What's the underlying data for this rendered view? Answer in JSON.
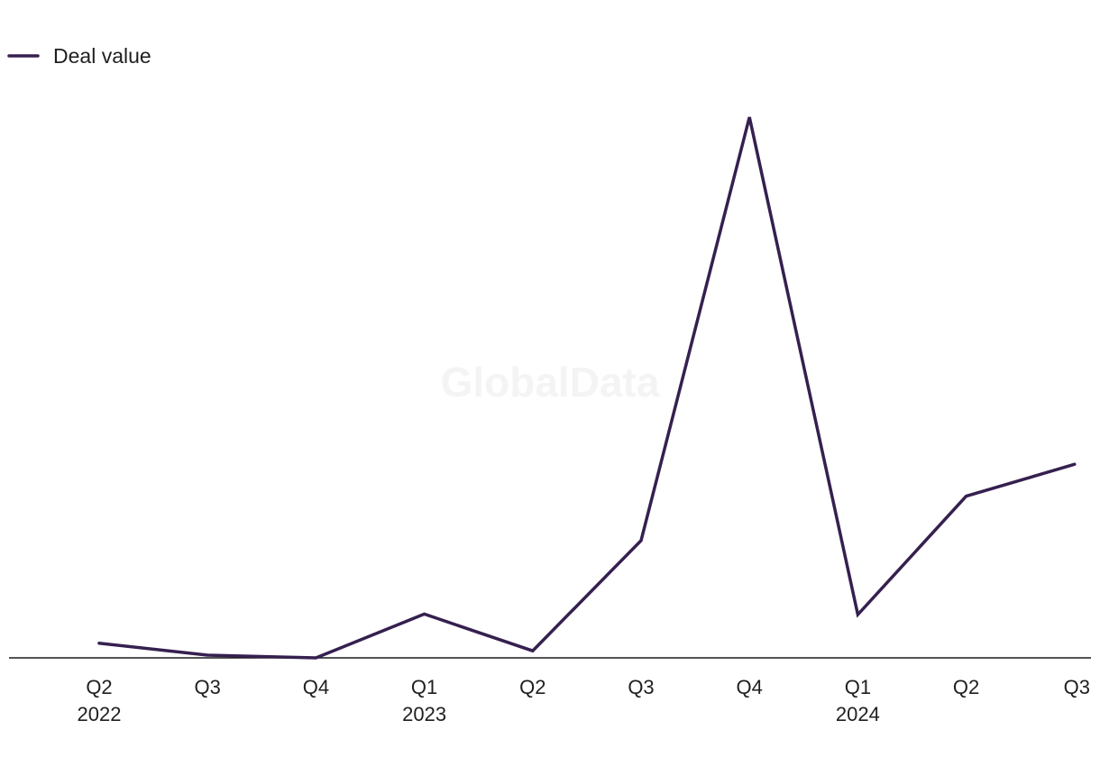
{
  "chart_data": {
    "type": "line",
    "title": "",
    "xlabel": "",
    "ylabel": "",
    "categories": [
      "Q2 2022",
      "Q3 2022",
      "Q4 2022",
      "Q1 2023",
      "Q2 2023",
      "Q3 2023",
      "Q4 2023",
      "Q1 2024",
      "Q2 2024",
      "Q3 2024"
    ],
    "tick_labels": [
      {
        "quarter": "Q2",
        "year": "2022"
      },
      {
        "quarter": "Q3",
        "year": ""
      },
      {
        "quarter": "Q4",
        "year": ""
      },
      {
        "quarter": "Q1",
        "year": "2023"
      },
      {
        "quarter": "Q2",
        "year": ""
      },
      {
        "quarter": "Q3",
        "year": ""
      },
      {
        "quarter": "Q4",
        "year": ""
      },
      {
        "quarter": "Q1",
        "year": "2024"
      },
      {
        "quarter": "Q2",
        "year": ""
      },
      {
        "quarter": "Q3",
        "year": ""
      }
    ],
    "series": [
      {
        "name": "Deal value",
        "color": "#35204f",
        "values": [
          2.7,
          0.5,
          0,
          8.1,
          1.3,
          21.7,
          100,
          8.0,
          29.9,
          35.8
        ]
      }
    ],
    "ylim": [
      0,
      100
    ],
    "y_axis_visible": false,
    "grid": false,
    "legend": {
      "position": "top-left"
    },
    "watermark": "GlobalData"
  }
}
